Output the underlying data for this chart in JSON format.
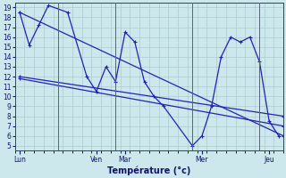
{
  "xlabel": "Température (°c)",
  "ylim": [
    5,
    19
  ],
  "yticks": [
    5,
    6,
    7,
    8,
    9,
    10,
    11,
    12,
    13,
    14,
    15,
    16,
    17,
    18,
    19
  ],
  "bg_color": "#cce8ec",
  "grid_color": "#aacccc",
  "line_color": "#2222bb",
  "day_labels": [
    "Lun",
    "Ven",
    "Mar",
    "Mer",
    "Jeu"
  ],
  "day_tick_pos": [
    0.5,
    8.5,
    11.5,
    19.5,
    26.5
  ],
  "day_vline_pos": [
    4.5,
    10.5,
    18.5,
    25.5
  ],
  "xlim": [
    0,
    28
  ],
  "n_points": 28,
  "line1_x": [
    0.5,
    28
  ],
  "line1_y": [
    18.5,
    6.0
  ],
  "line2_x": [
    0.5,
    28
  ],
  "line2_y": [
    11.8,
    7.0
  ],
  "line3_x": [
    0.5,
    28
  ],
  "line3_y": [
    12.0,
    8.0
  ],
  "main_x": [
    0.5,
    1.5,
    2.5,
    3.5,
    5.5,
    7.5,
    8.5,
    9.5,
    10.5,
    11.5,
    12.5,
    13.5,
    14.5,
    15.5,
    18.5,
    19.5,
    20.5,
    21.5,
    22.5,
    23.5,
    24.5,
    25.5,
    26.5,
    27.5
  ],
  "main_y": [
    18.5,
    15.2,
    17.2,
    19.2,
    18.5,
    12.0,
    10.5,
    13.0,
    11.5,
    16.5,
    15.5,
    11.5,
    10.0,
    9.0,
    5.0,
    6.0,
    9.0,
    14.0,
    16.0,
    15.5,
    16.0,
    13.5,
    7.5,
    6.0
  ]
}
